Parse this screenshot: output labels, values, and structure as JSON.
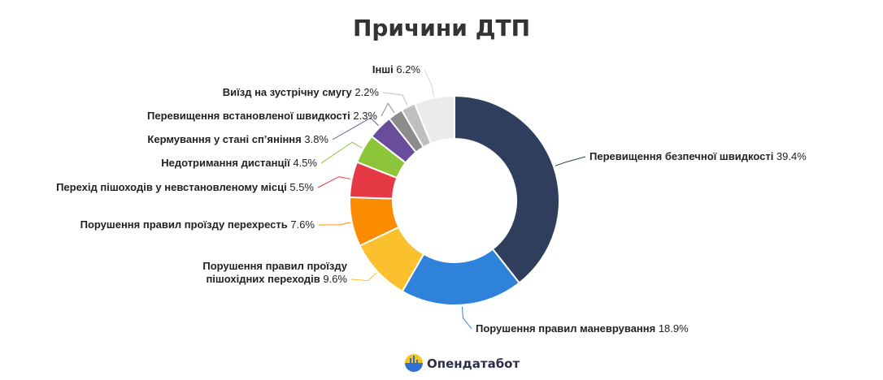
{
  "chart_data": {
    "type": "pie",
    "title": "Причини ДТП",
    "donut": true,
    "slices": [
      {
        "label": "Перевищення безпечної швидкості",
        "value": 39.4,
        "value_label": "39.4%",
        "color": "#2f3e5c"
      },
      {
        "label": "Порушення правил маневрування",
        "value": 18.9,
        "value_label": "18.9%",
        "color": "#2e82d9"
      },
      {
        "label": "Порушення правил проїзду пішохідних переходів",
        "label_lines": [
          "Порушення правил проїзду",
          "пішохідних переходів"
        ],
        "value": 9.6,
        "value_label": "9.6%",
        "color": "#fbc02d"
      },
      {
        "label": "Порушення правил проїзду перехресть",
        "value": 7.6,
        "value_label": "7.6%",
        "color": "#fb8c00"
      },
      {
        "label": "Перехід пішоходів у невстановленому місці",
        "value": 5.5,
        "value_label": "5.5%",
        "color": "#e53946"
      },
      {
        "label": "Недотримання дистанції",
        "value": 4.5,
        "value_label": "4.5%",
        "color": "#8cc43a"
      },
      {
        "label": "Кермування у стані сп’яніння",
        "value": 3.8,
        "value_label": "3.8%",
        "color": "#6a4c9c"
      },
      {
        "label": "Перевищення встановленої швидкості",
        "value": 2.3,
        "value_label": "2.3%",
        "color": "#8c8c8c"
      },
      {
        "label": "Виїзд на зустрічну смугу",
        "value": 2.2,
        "value_label": "2.2%",
        "color": "#bfbfbf"
      },
      {
        "label": "Інші",
        "value": 6.2,
        "value_label": "6.2%",
        "color": "#ebebeb"
      }
    ]
  },
  "brand": {
    "name": "Опендатабот",
    "logo": "opendatabot-logo-icon"
  }
}
